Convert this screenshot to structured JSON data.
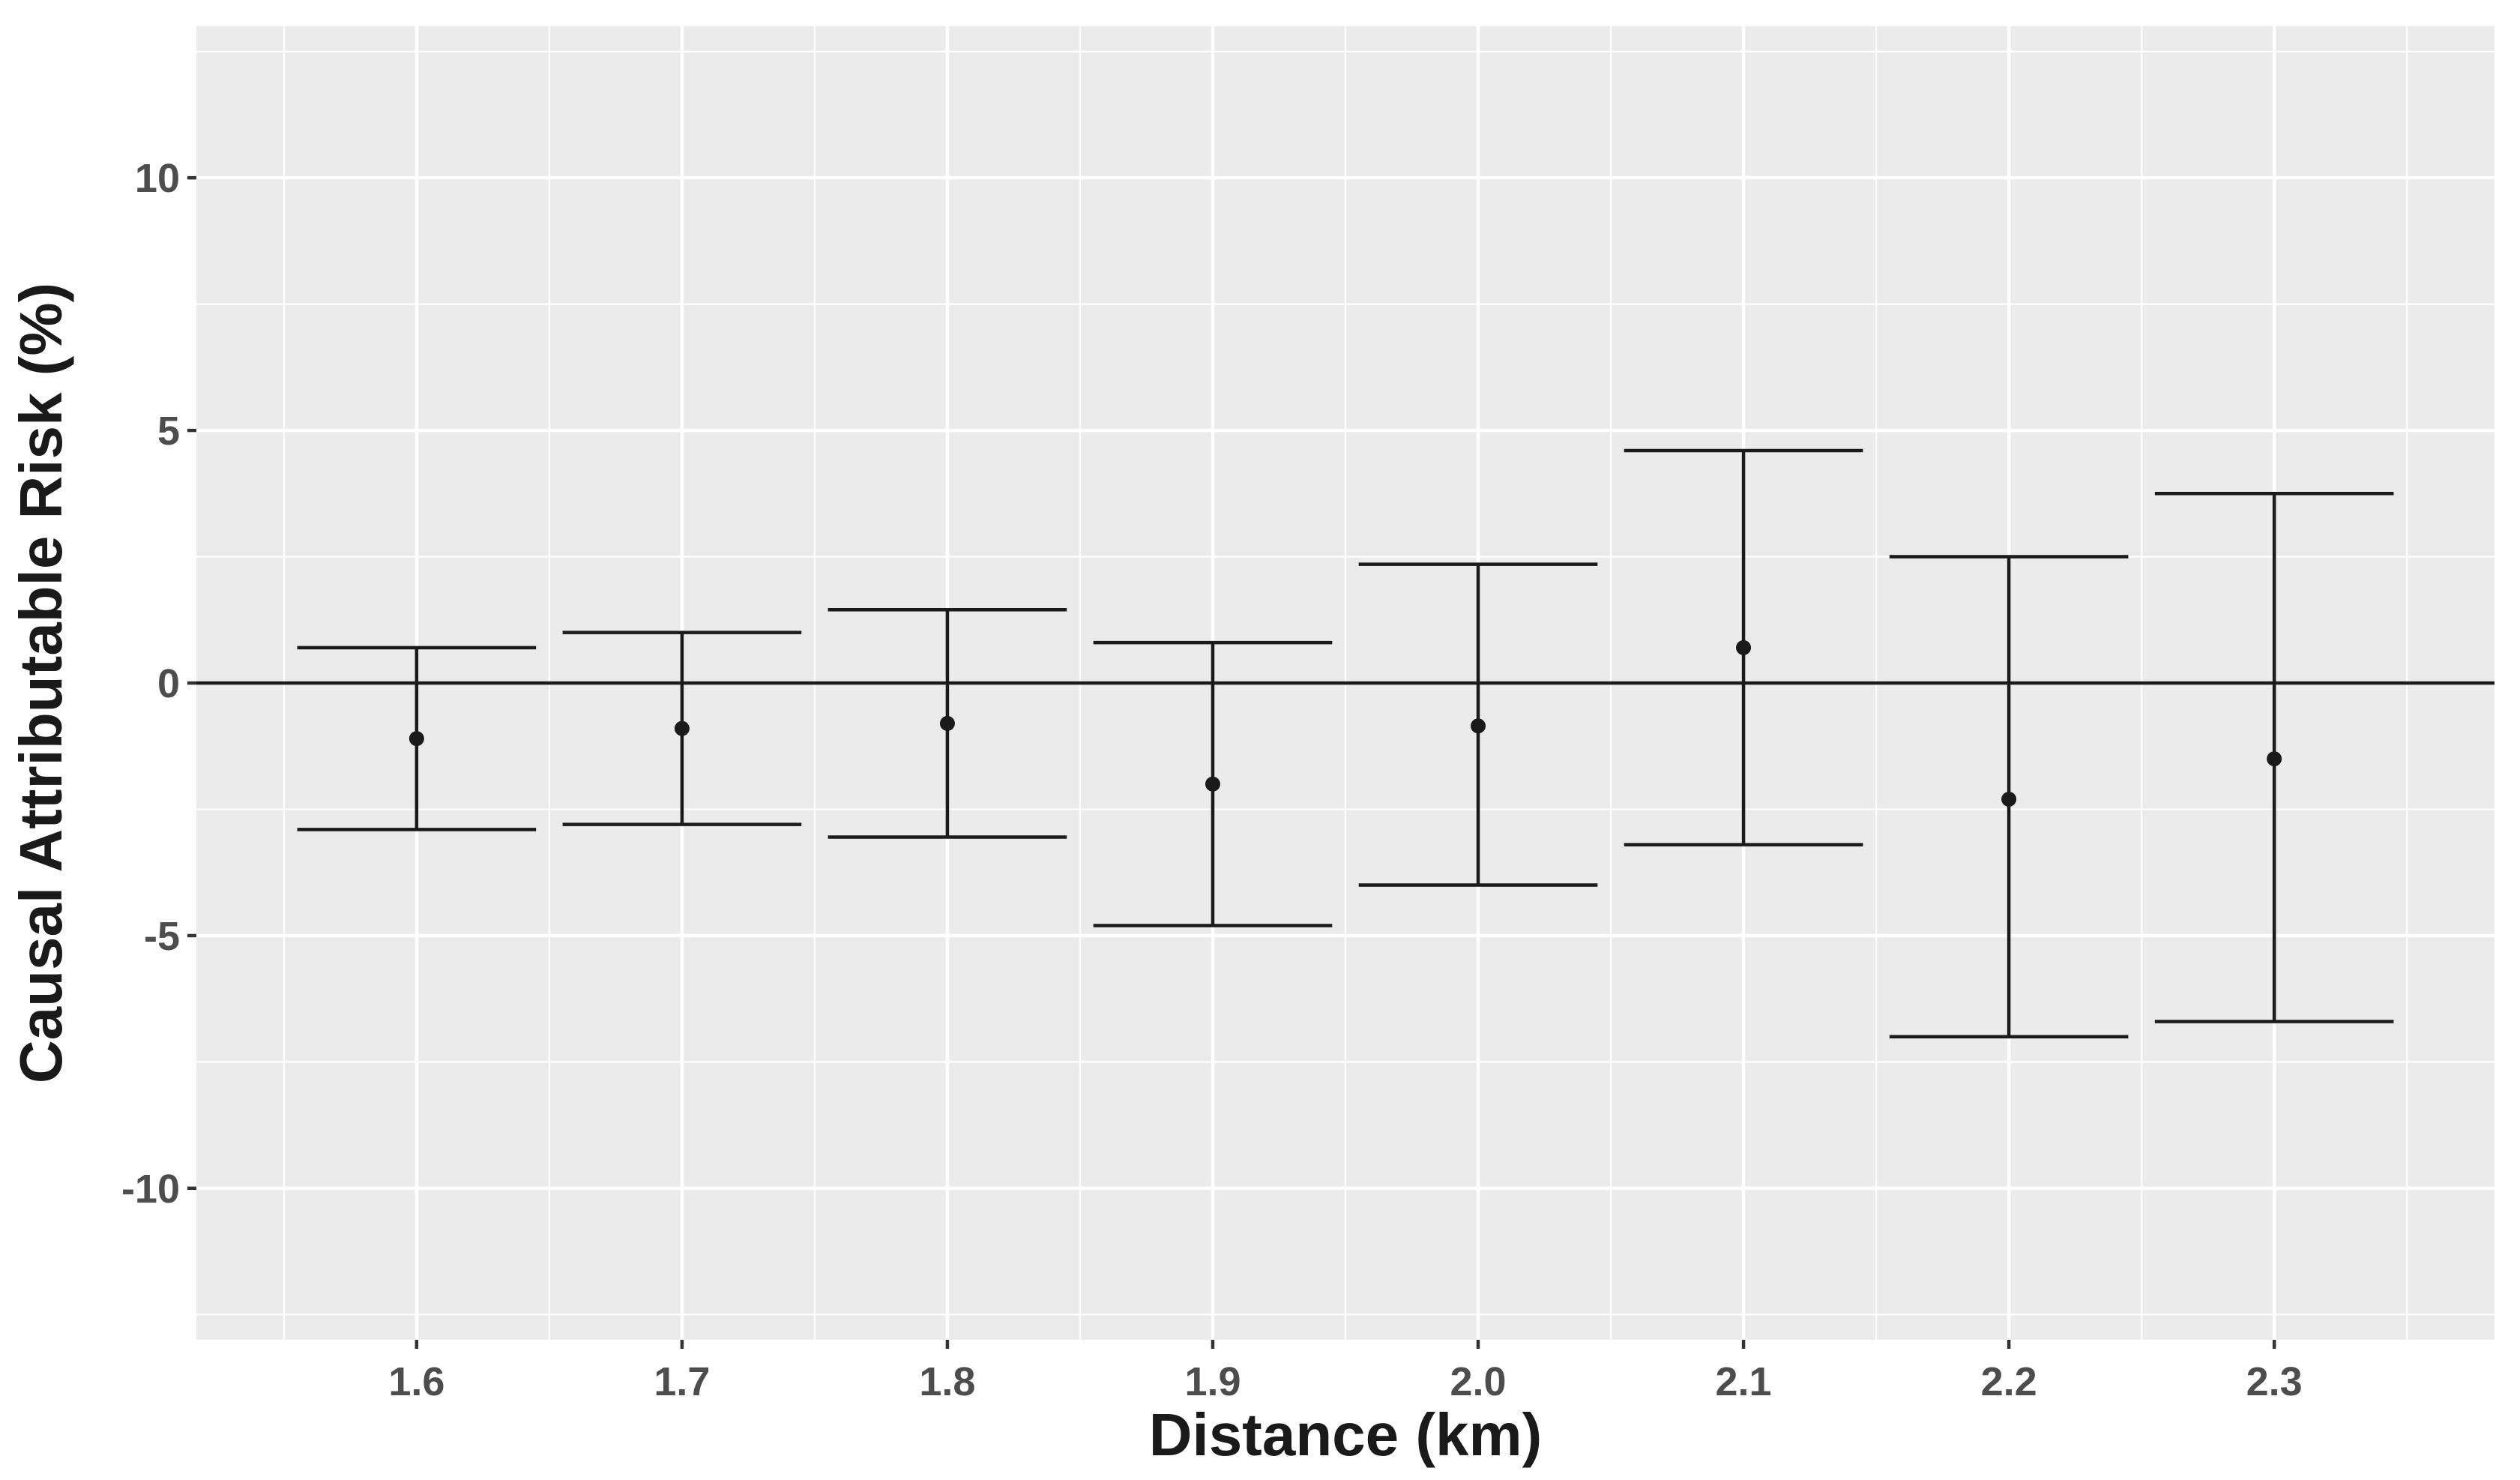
{
  "chart_data": {
    "type": "errorbar",
    "title": "",
    "xlabel": "Distance (km)",
    "ylabel": "Causal Attributable Risk (%)",
    "categories": [
      "1.6",
      "1.7",
      "1.8",
      "1.9",
      "2.0",
      "2.1",
      "2.2",
      "2.3"
    ],
    "series": [
      {
        "estimate": [
          -1.1,
          -0.9,
          -0.8,
          -2.0,
          -0.85,
          0.7,
          -2.3,
          -1.5
        ],
        "lower": [
          -2.9,
          -2.8,
          -3.05,
          -4.8,
          -4.0,
          -3.2,
          -7.0,
          -6.7
        ],
        "upper": [
          0.7,
          1.0,
          1.45,
          0.8,
          2.35,
          4.6,
          2.5,
          3.75
        ]
      }
    ],
    "xlim": [
      1.517,
      2.383
    ],
    "ylim": [
      -13,
      13
    ],
    "yticks": [
      -10,
      -5,
      0,
      5,
      10
    ],
    "ytick_labels": [
      "-10",
      "-5",
      "0",
      "5",
      "10"
    ],
    "reference_line": 0,
    "grid": true,
    "legend": "none",
    "colors": {
      "panel_background": "#ebebeb",
      "grid": "#ffffff",
      "marks": "#1a1a1a",
      "tick_text": "#4d4d4d"
    }
  }
}
